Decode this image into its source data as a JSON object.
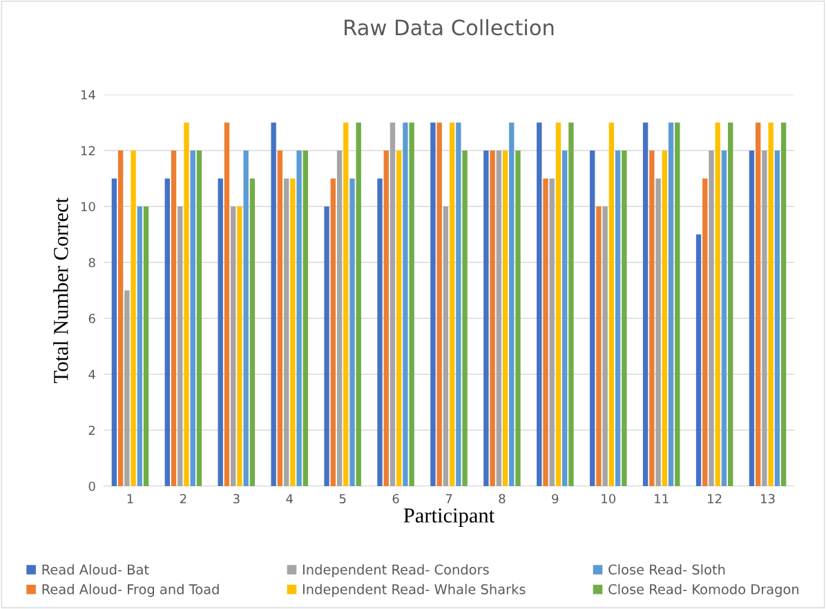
{
  "chart_data": {
    "type": "bar",
    "title": "Raw Data Collection",
    "xlabel": "Participant",
    "ylabel": "Total Number Correct",
    "categories": [
      "1",
      "2",
      "3",
      "4",
      "5",
      "6",
      "7",
      "8",
      "9",
      "10",
      "11",
      "12",
      "13"
    ],
    "series": [
      {
        "name": "Read Aloud- Bat",
        "color": "#4472c4",
        "values": [
          11,
          11,
          11,
          13,
          10,
          11,
          13,
          12,
          13,
          12,
          13,
          9,
          12
        ]
      },
      {
        "name": "Read Aloud- Frog and Toad",
        "color": "#ed7d31",
        "values": [
          12,
          12,
          13,
          12,
          11,
          12,
          13,
          12,
          11,
          10,
          12,
          11,
          13
        ]
      },
      {
        "name": "Independent Read- Condors",
        "color": "#a5a5a5",
        "values": [
          7,
          10,
          10,
          11,
          12,
          13,
          10,
          12,
          11,
          10,
          11,
          12,
          12
        ]
      },
      {
        "name": "Independent Read- Whale Sharks",
        "color": "#ffc000",
        "values": [
          12,
          13,
          10,
          11,
          13,
          12,
          13,
          12,
          13,
          13,
          12,
          13,
          13
        ]
      },
      {
        "name": "Close Read- Sloth",
        "color": "#5b9bd5",
        "values": [
          10,
          12,
          12,
          12,
          11,
          13,
          13,
          13,
          12,
          12,
          13,
          12,
          12
        ]
      },
      {
        "name": "Close Read- Komodo Dragon",
        "color": "#70ad47",
        "values": [
          10,
          12,
          11,
          12,
          13,
          13,
          12,
          12,
          13,
          12,
          13,
          13,
          13
        ]
      }
    ],
    "ylim": [
      0,
      14
    ],
    "yticks": [
      0,
      2,
      4,
      6,
      8,
      10,
      12,
      14
    ],
    "grid": "y",
    "legend": "bottom"
  }
}
